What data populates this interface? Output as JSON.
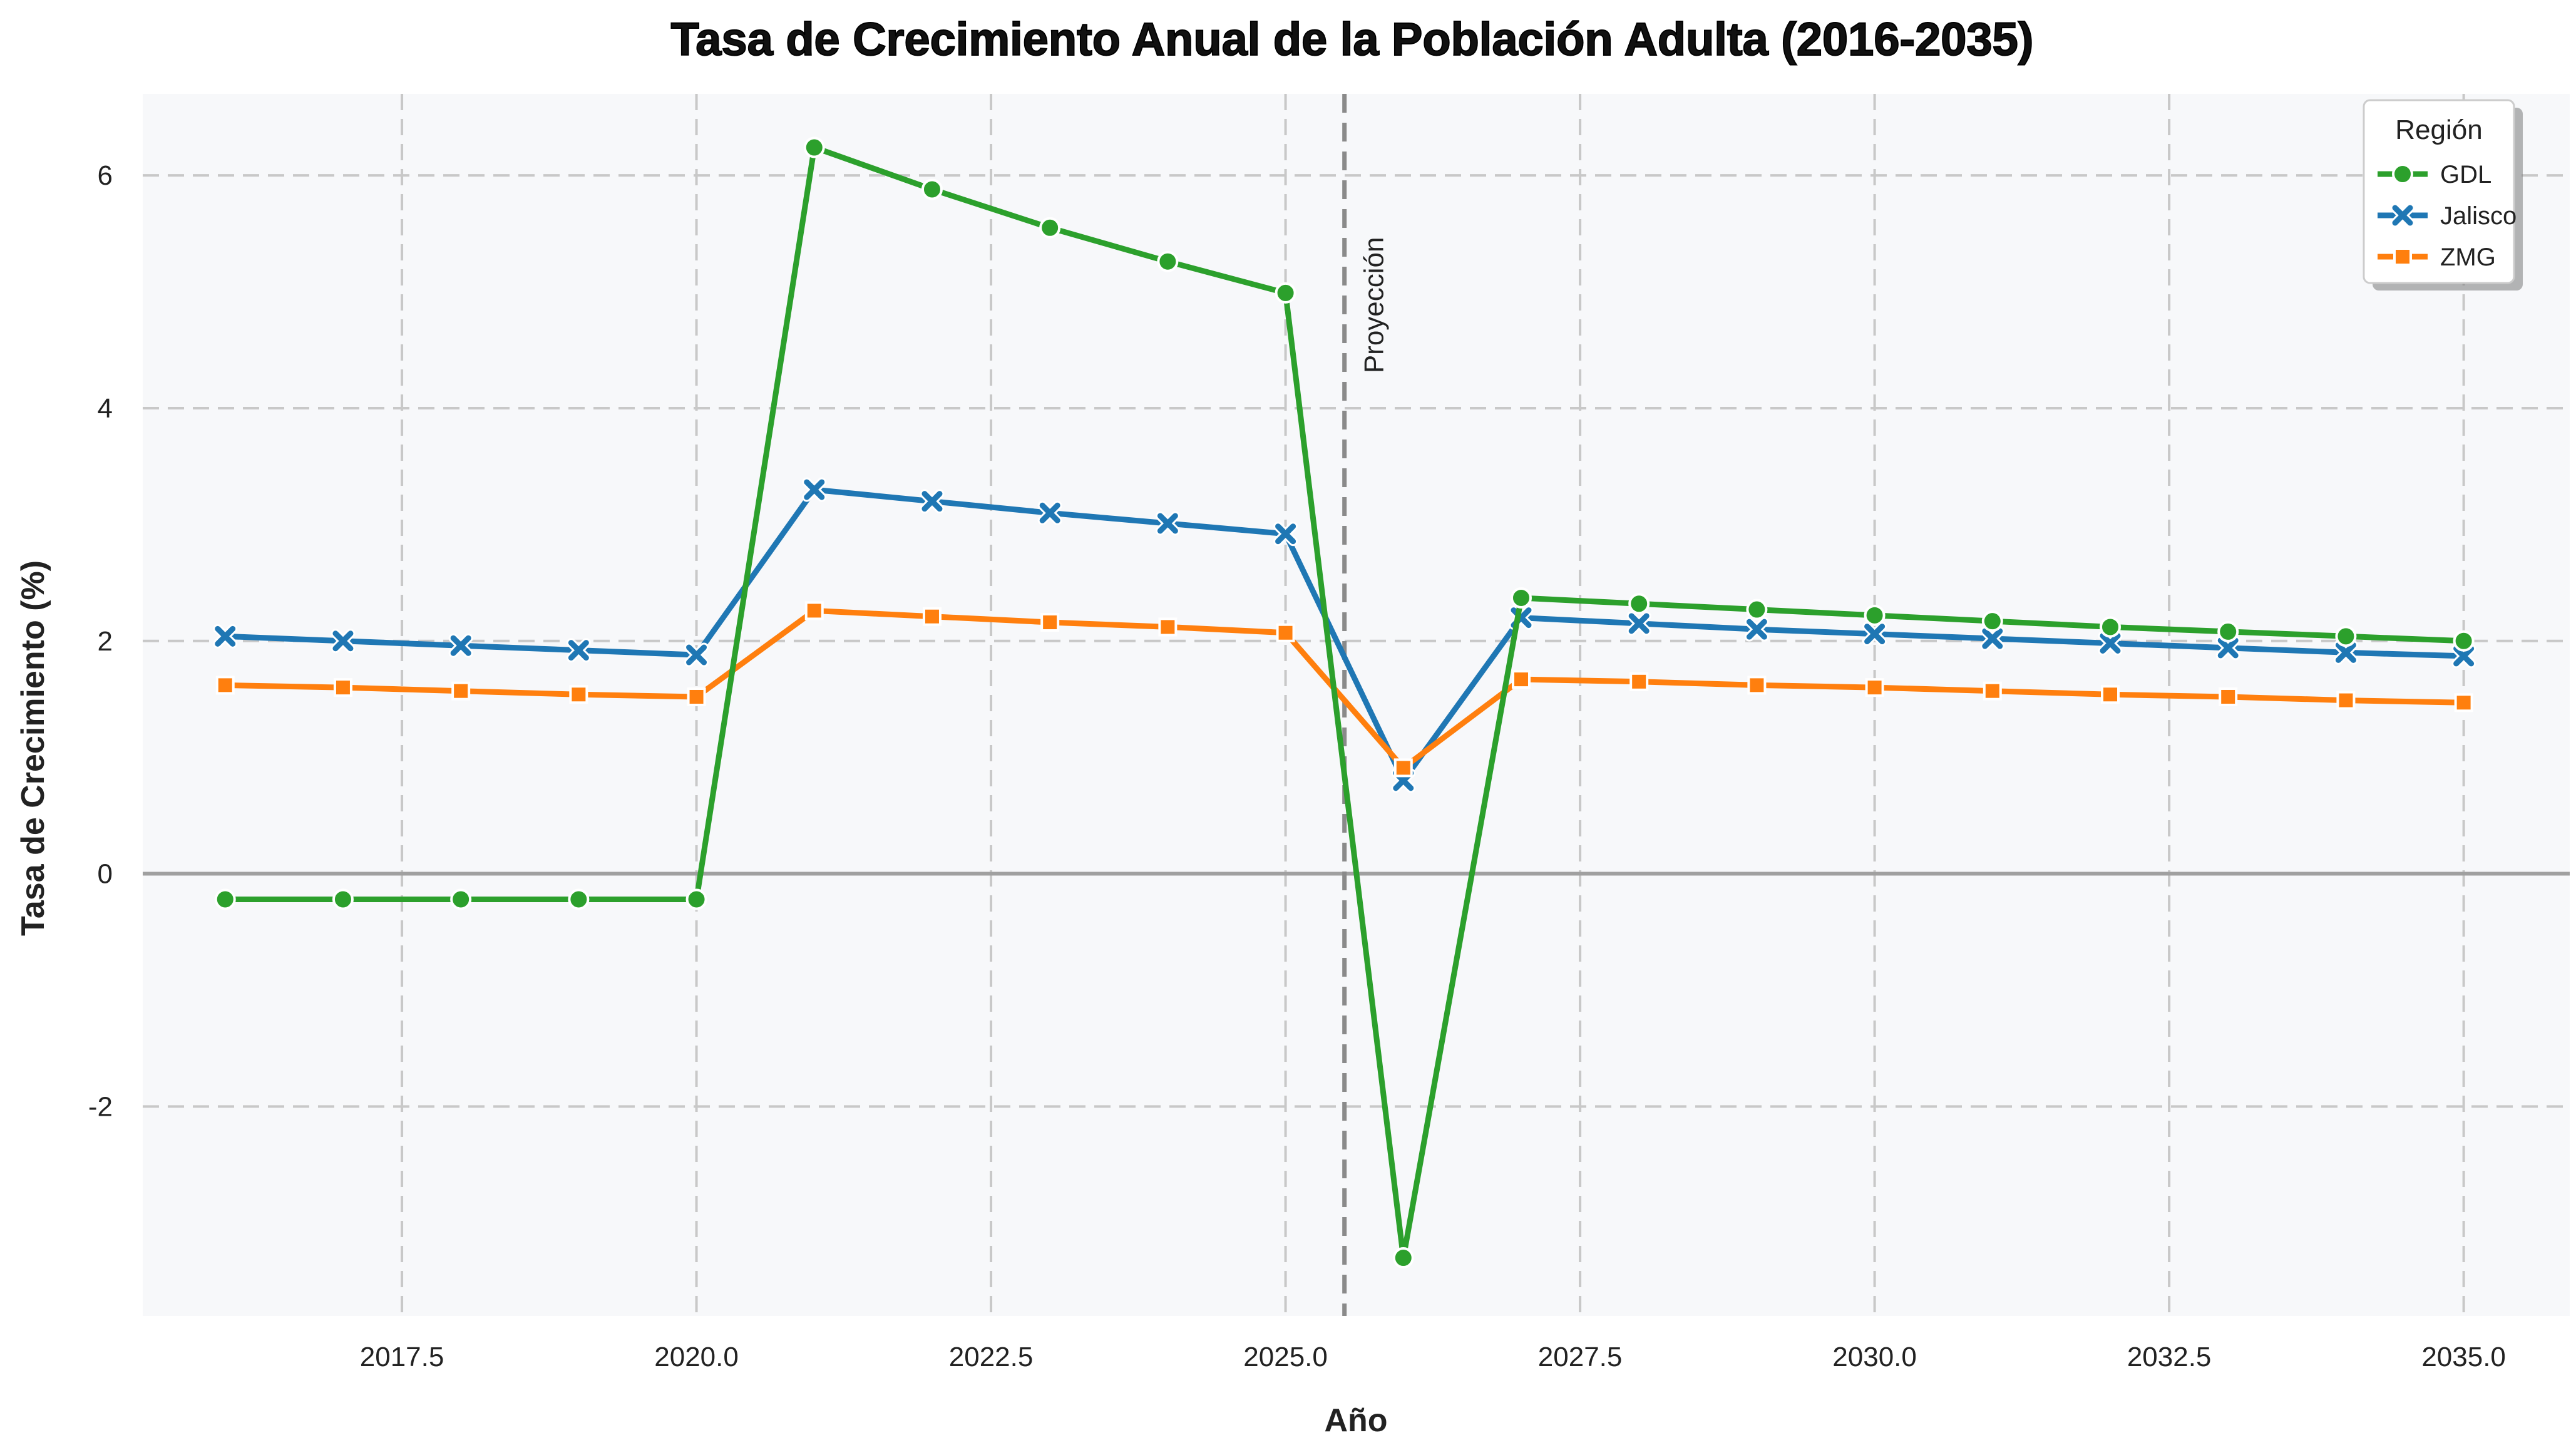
{
  "chart_data": {
    "type": "line",
    "title": "Tasa de Crecimiento Anual de la Población Adulta (2016-2035)",
    "xlabel": "Año",
    "ylabel": "Tasa de Crecimiento (%)",
    "xlim": [
      2015.3,
      2035.9
    ],
    "ylim": [
      -3.8,
      6.7
    ],
    "xticks": [
      2017.5,
      2020.0,
      2022.5,
      2025.0,
      2027.5,
      2030.0,
      2032.5,
      2035.0
    ],
    "xtick_labels": [
      "2017.5",
      "2020.0",
      "2022.5",
      "2025.0",
      "2027.5",
      "2030.0",
      "2032.5",
      "2035.0"
    ],
    "yticks": [
      -2,
      0,
      2,
      4,
      6
    ],
    "ytick_labels": [
      "-2",
      "0",
      "2",
      "4",
      "6"
    ],
    "grid": true,
    "legend": {
      "title": "Región",
      "position": "top-right"
    },
    "projection_line": {
      "x": 2025.5,
      "label": "Proyección"
    },
    "zero_line": true,
    "x": [
      2016,
      2017,
      2018,
      2019,
      2020,
      2021,
      2022,
      2023,
      2024,
      2025,
      2026,
      2027,
      2028,
      2029,
      2030,
      2031,
      2032,
      2033,
      2034,
      2035
    ],
    "series": [
      {
        "name": "GDL",
        "color": "#2ca02c",
        "marker": "circle",
        "values": [
          -0.22,
          -0.22,
          -0.22,
          -0.22,
          -0.22,
          6.24,
          5.88,
          5.55,
          5.26,
          4.99,
          -3.3,
          2.37,
          2.32,
          2.27,
          2.22,
          2.17,
          2.12,
          2.08,
          2.04,
          2.0
        ]
      },
      {
        "name": "Jalisco",
        "color": "#1f77b4",
        "marker": "x",
        "values": [
          2.04,
          2.0,
          1.96,
          1.92,
          1.88,
          3.3,
          3.2,
          3.1,
          3.01,
          2.92,
          0.8,
          2.2,
          2.15,
          2.1,
          2.06,
          2.02,
          1.98,
          1.94,
          1.9,
          1.87
        ]
      },
      {
        "name": "ZMG",
        "color": "#ff7f0e",
        "marker": "square",
        "values": [
          1.62,
          1.6,
          1.57,
          1.54,
          1.52,
          2.26,
          2.21,
          2.16,
          2.12,
          2.07,
          0.91,
          1.67,
          1.65,
          1.62,
          1.6,
          1.57,
          1.54,
          1.52,
          1.49,
          1.47
        ]
      }
    ]
  }
}
